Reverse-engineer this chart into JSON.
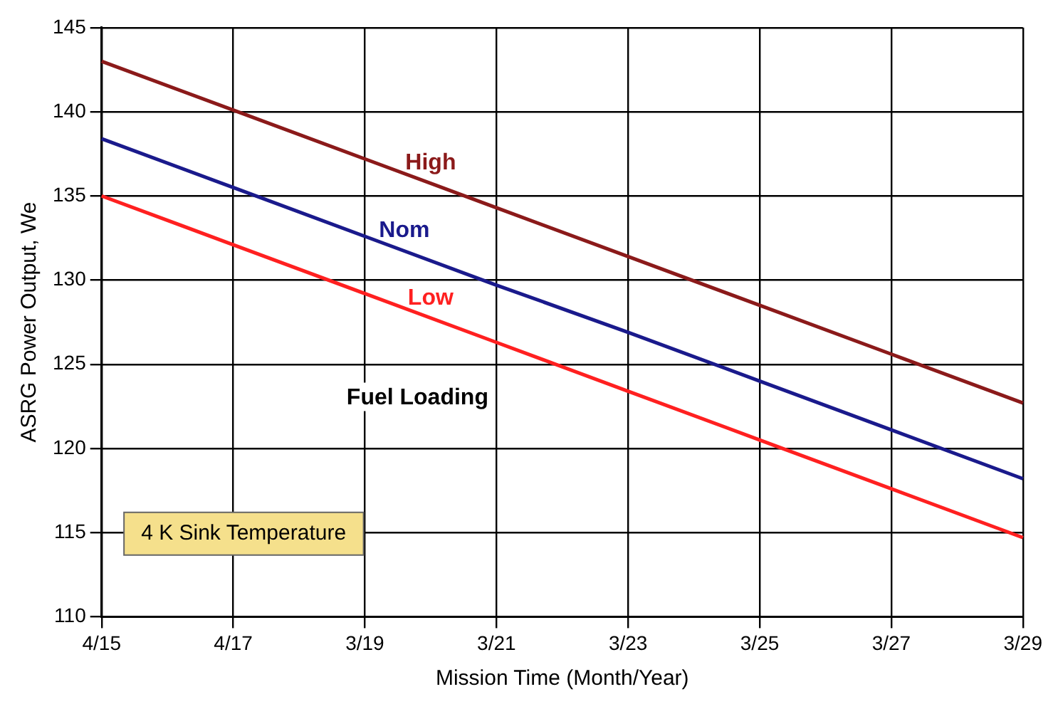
{
  "chart_data": {
    "type": "line",
    "xlabel": "Mission Time (Month/Year)",
    "ylabel": "ASRG Power Output, We",
    "categories": [
      "4/15",
      "4/17",
      "3/19",
      "3/21",
      "3/23",
      "3/25",
      "3/27",
      "3/29"
    ],
    "series": [
      {
        "name": "High",
        "color": "#8b1a1a",
        "values": [
          143,
          140.1,
          137.2,
          134.3,
          131.4,
          128.5,
          125.6,
          122.7
        ]
      },
      {
        "name": "Nom",
        "color": "#1a1a8c",
        "values": [
          138.4,
          135.5,
          132.6,
          129.7,
          126.9,
          124.0,
          121.1,
          118.2
        ]
      },
      {
        "name": "Low",
        "color": "#ff2020",
        "values": [
          135,
          132.1,
          129.2,
          126.3,
          123.4,
          120.5,
          117.6,
          114.7
        ]
      }
    ],
    "annotations": [
      "Fuel Loading",
      "4 K Sink Temperature"
    ],
    "ylim": [
      110,
      145
    ],
    "yticks": [
      110,
      115,
      120,
      125,
      130,
      135,
      140,
      145
    ],
    "grid": true,
    "legend": false,
    "marker": "none",
    "line_style": "solid"
  }
}
